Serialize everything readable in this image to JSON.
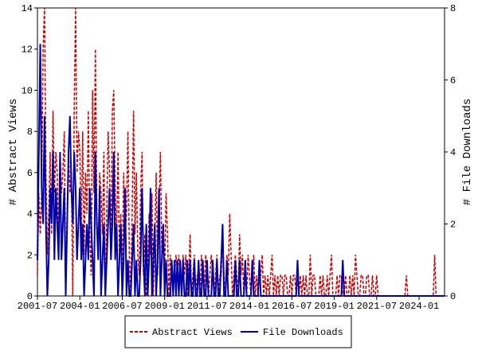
{
  "chart_data": {
    "type": "line",
    "x": [
      "2001-07",
      "2001-08",
      "2001-09",
      "2001-10",
      "2001-11",
      "2001-12",
      "2002-01",
      "2002-02",
      "2002-03",
      "2002-04",
      "2002-05",
      "2002-06",
      "2002-07",
      "2002-08",
      "2002-09",
      "2002-10",
      "2002-11",
      "2002-12",
      "2003-01",
      "2003-02",
      "2003-03",
      "2003-04",
      "2003-05",
      "2003-06",
      "2003-07",
      "2003-08",
      "2003-09",
      "2003-10",
      "2003-11",
      "2003-12",
      "2004-01",
      "2004-02",
      "2004-03",
      "2004-04",
      "2004-05",
      "2004-06",
      "2004-07",
      "2004-08",
      "2004-09",
      "2004-10",
      "2004-11",
      "2004-12",
      "2005-01",
      "2005-02",
      "2005-03",
      "2005-04",
      "2005-05",
      "2005-06",
      "2005-07",
      "2005-08",
      "2005-09",
      "2005-10",
      "2005-11",
      "2005-12",
      "2006-01",
      "2006-02",
      "2006-03",
      "2006-04",
      "2006-05",
      "2006-06",
      "2006-07",
      "2006-08",
      "2006-09",
      "2006-10",
      "2006-11",
      "2006-12",
      "2007-01",
      "2007-02",
      "2007-03",
      "2007-04",
      "2007-05",
      "2007-06",
      "2007-07",
      "2007-08",
      "2007-09",
      "2007-10",
      "2007-11",
      "2007-12",
      "2008-01",
      "2008-02",
      "2008-03",
      "2008-04",
      "2008-05",
      "2008-06",
      "2008-07",
      "2008-08",
      "2008-09",
      "2008-10",
      "2008-11",
      "2008-12",
      "2009-01",
      "2009-02",
      "2009-03",
      "2009-04",
      "2009-05",
      "2009-06",
      "2009-07",
      "2009-08",
      "2009-09",
      "2009-10",
      "2009-11",
      "2009-12",
      "2010-01",
      "2010-02",
      "2010-03",
      "2010-04",
      "2010-05",
      "2010-06",
      "2010-07",
      "2010-08",
      "2010-09",
      "2010-10",
      "2010-11",
      "2010-12",
      "2011-01",
      "2011-02",
      "2011-03",
      "2011-04",
      "2011-05",
      "2011-06",
      "2011-07",
      "2011-08",
      "2011-09",
      "2011-10",
      "2011-11",
      "2011-12",
      "2012-01",
      "2012-02",
      "2012-03",
      "2012-04",
      "2012-05",
      "2012-06",
      "2012-07",
      "2012-08",
      "2012-09",
      "2012-10",
      "2012-11",
      "2012-12",
      "2013-01",
      "2013-02",
      "2013-03",
      "2013-04",
      "2013-05",
      "2013-06",
      "2013-07",
      "2013-08",
      "2013-09",
      "2013-10",
      "2013-11",
      "2013-12",
      "2014-01",
      "2014-02",
      "2014-03",
      "2014-04",
      "2014-05",
      "2014-06",
      "2014-07",
      "2014-08",
      "2014-09",
      "2014-10",
      "2014-11",
      "2014-12",
      "2015-01",
      "2015-02",
      "2015-03",
      "2015-04",
      "2015-05",
      "2015-06",
      "2015-07",
      "2015-08",
      "2015-09",
      "2015-10",
      "2015-11",
      "2015-12",
      "2016-01",
      "2016-02",
      "2016-03",
      "2016-04",
      "2016-05",
      "2016-06",
      "2016-07",
      "2016-08",
      "2016-09",
      "2016-10",
      "2016-11",
      "2016-12",
      "2017-01",
      "2017-02",
      "2017-03",
      "2017-04",
      "2017-05",
      "2017-06",
      "2017-07",
      "2017-08",
      "2017-09",
      "2017-10",
      "2017-11",
      "2017-12",
      "2018-01",
      "2018-02",
      "2018-03",
      "2018-04",
      "2018-05",
      "2018-06",
      "2018-07",
      "2018-08",
      "2018-09",
      "2018-10",
      "2018-11",
      "2018-12",
      "2019-01",
      "2019-02",
      "2019-03",
      "2019-04",
      "2019-05",
      "2019-06",
      "2019-07",
      "2019-08",
      "2019-09",
      "2019-10",
      "2019-11",
      "2019-12",
      "2020-01",
      "2020-02",
      "2020-03",
      "2020-04",
      "2020-05",
      "2020-06",
      "2020-07",
      "2020-08",
      "2020-09",
      "2020-10",
      "2020-11",
      "2020-12",
      "2021-01",
      "2021-02",
      "2021-03",
      "2021-04",
      "2021-05",
      "2021-06",
      "2021-07",
      "2021-08",
      "2021-09",
      "2021-10",
      "2021-11",
      "2021-12",
      "2022-01",
      "2022-02",
      "2022-03",
      "2022-04",
      "2022-05",
      "2022-06",
      "2022-07",
      "2022-08",
      "2022-09",
      "2022-10",
      "2022-11",
      "2022-12",
      "2023-01",
      "2023-02",
      "2023-03",
      "2023-04",
      "2023-05",
      "2023-06",
      "2023-07",
      "2023-08",
      "2023-09",
      "2023-10",
      "2023-11",
      "2023-12",
      "2024-01",
      "2024-02",
      "2024-03",
      "2024-04",
      "2024-05",
      "2024-06",
      "2024-07",
      "2024-08",
      "2024-09",
      "2024-10",
      "2024-11",
      "2024-12",
      "2025-01",
      "2025-02",
      "2025-03",
      "2025-04",
      "2025-05",
      "2025-06",
      "2025-07"
    ],
    "xticks": [
      "2001-07",
      "2004-01",
      "2006-07",
      "2009-01",
      "2011-07",
      "2014-01",
      "2016-07",
      "2019-01",
      "2021-07",
      "2024-01"
    ],
    "ylabel": "# Abstract Views",
    "y2label": "# File Downloads",
    "ylim": [
      0,
      14
    ],
    "yticks": [
      0,
      2,
      4,
      6,
      8,
      10,
      12,
      14
    ],
    "y2lim": [
      0,
      8
    ],
    "y2ticks": [
      0,
      2,
      4,
      6,
      8
    ],
    "series": [
      {
        "name": "Abstract Views",
        "color": "#cc0000",
        "dash": true,
        "values": [
          1,
          5,
          3,
          5,
          12,
          14,
          6,
          2,
          4,
          7,
          3,
          9,
          5,
          7,
          6,
          2,
          7,
          5,
          6,
          8,
          1,
          3,
          7,
          5,
          6,
          0,
          9,
          14,
          6,
          8,
          7,
          3,
          8,
          2,
          6,
          4,
          9,
          3,
          1,
          10,
          5,
          12,
          4,
          2,
          6,
          5,
          3,
          7,
          0,
          4,
          8,
          6,
          2,
          9,
          10,
          5,
          3,
          7,
          2,
          4,
          1,
          6,
          3,
          4,
          8,
          2,
          0,
          4,
          9,
          3,
          6,
          2,
          1,
          5,
          7,
          1,
          3,
          0,
          1,
          4,
          2,
          5,
          0,
          3,
          6,
          1,
          4,
          7,
          2,
          3,
          1,
          5,
          3,
          0,
          2,
          1,
          1,
          1,
          2,
          1,
          2,
          1,
          0,
          2,
          1,
          2,
          0,
          1,
          3,
          0,
          1,
          2,
          0,
          1,
          1,
          0,
          2,
          1,
          0,
          2,
          1,
          0,
          1,
          2,
          1,
          0,
          1,
          2,
          0,
          1,
          1,
          3,
          1,
          0,
          2,
          1,
          4,
          2,
          0,
          1,
          2,
          1,
          0,
          3,
          1,
          2,
          0,
          1,
          0,
          2,
          1,
          0,
          1,
          2,
          0,
          1,
          0,
          1,
          1,
          2,
          0,
          1,
          0,
          1,
          0,
          1,
          2,
          0,
          1,
          0,
          1,
          0,
          1,
          1,
          0,
          1,
          1,
          0,
          0,
          1,
          0,
          1,
          1,
          0,
          1,
          0,
          1,
          0,
          1,
          0,
          1,
          0,
          0,
          2,
          0,
          1,
          1,
          0,
          0,
          0,
          1,
          0,
          1,
          0,
          0,
          1,
          0,
          1,
          2,
          0,
          0,
          0,
          1,
          0,
          1,
          1,
          0,
          0,
          1,
          0,
          0,
          1,
          0,
          1,
          0,
          2,
          1,
          0,
          0,
          1,
          1,
          0,
          0,
          1,
          1,
          0,
          0,
          1,
          0,
          0,
          1,
          0,
          0,
          0,
          0,
          0,
          0,
          0,
          0,
          0,
          0,
          0,
          0,
          0,
          0,
          0,
          0,
          0,
          0,
          0,
          0,
          1,
          0,
          0,
          0,
          0,
          0,
          0,
          0,
          0,
          0,
          0,
          0,
          0,
          0,
          0,
          0,
          0,
          0,
          0,
          0,
          2,
          0,
          0,
          0,
          0,
          0,
          0,
          0
        ]
      },
      {
        "name": "File Downloads",
        "color": "#0000aa",
        "dash": false,
        "axis": "y2",
        "values": [
          1,
          4,
          7,
          3,
          2,
          5,
          2,
          0,
          1,
          3,
          2,
          4,
          1,
          3,
          2,
          1,
          4,
          1,
          2,
          3,
          0,
          2,
          4,
          5,
          3,
          2,
          4,
          3,
          1,
          2,
          3,
          1,
          2,
          0,
          1,
          2,
          1,
          3,
          2,
          1,
          0,
          4,
          2,
          1,
          3,
          0,
          1,
          2,
          0,
          1,
          2,
          3,
          1,
          2,
          4,
          1,
          2,
          0,
          1,
          2,
          0,
          1,
          3,
          0,
          1,
          0,
          0,
          1,
          2,
          0,
          1,
          0,
          0,
          1,
          3,
          1,
          0,
          2,
          0,
          1,
          3,
          0,
          1,
          2,
          0,
          1,
          3,
          0,
          1,
          2,
          0,
          1,
          0,
          0,
          0,
          1,
          0,
          1,
          0,
          1,
          0,
          1,
          0,
          1,
          0,
          0,
          1,
          0,
          1,
          0,
          0,
          1,
          0,
          0,
          1,
          0,
          0,
          1,
          0,
          0,
          1,
          0,
          0,
          0,
          1,
          0,
          0,
          1,
          0,
          0,
          1,
          2,
          0,
          0,
          1,
          0,
          0,
          0,
          0,
          0,
          1,
          0,
          0,
          1,
          0,
          0,
          0,
          1,
          0,
          0,
          0,
          0,
          1,
          0,
          0,
          0,
          0,
          1,
          0,
          0,
          0,
          0,
          0,
          0,
          0,
          0,
          0,
          0,
          0,
          0,
          0,
          0,
          0,
          0,
          0,
          0,
          0,
          0,
          0,
          0,
          0,
          0,
          0,
          0,
          1,
          0,
          0,
          0,
          0,
          0,
          0,
          0,
          0,
          0,
          0,
          0,
          0,
          0,
          0,
          0,
          0,
          0,
          0,
          0,
          0,
          0,
          0,
          0,
          0,
          0,
          0,
          0,
          0,
          0,
          0,
          0,
          1,
          0,
          0,
          0,
          0,
          0,
          0,
          0,
          0,
          0,
          0,
          0,
          0,
          0,
          0,
          0,
          0,
          0,
          0,
          0,
          0,
          0,
          0,
          0,
          0,
          0,
          0,
          0,
          0,
          0,
          0,
          0,
          0,
          0,
          0,
          0,
          0,
          0,
          0,
          0,
          0,
          0,
          0,
          0,
          0,
          0,
          0,
          0,
          0,
          0,
          0,
          0,
          0,
          0,
          0,
          0,
          0,
          0,
          0,
          0,
          0,
          0,
          0,
          0,
          0,
          0,
          0,
          0,
          0,
          0,
          0,
          0,
          0
        ]
      }
    ]
  }
}
